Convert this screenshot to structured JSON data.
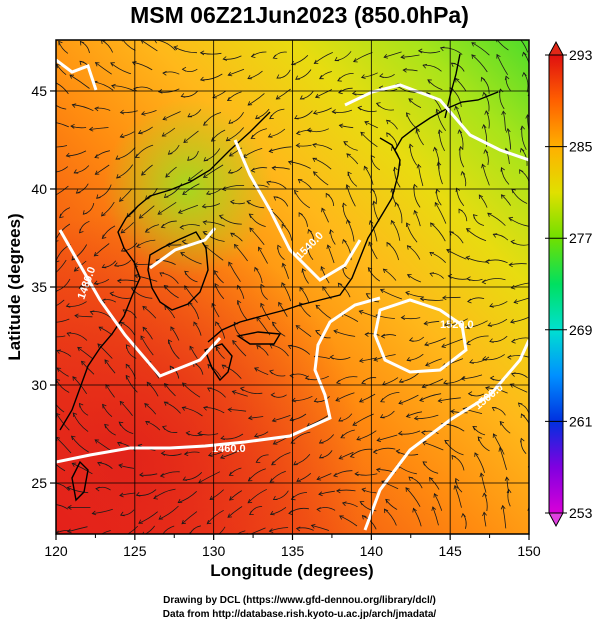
{
  "title": "MSM 06Z21Jun2023 (850.0hPa)",
  "chart_data": {
    "type": "heatmap",
    "title": "MSM 06Z21Jun2023 (850.0hPa)",
    "xlabel": "Longitude (degrees)",
    "ylabel": "Latitude  (degrees)",
    "xlim": [
      120,
      150
    ],
    "ylim": [
      22.4,
      47.6
    ],
    "x_ticks": [
      "120",
      "125",
      "130",
      "135",
      "140",
      "145",
      "150"
    ],
    "y_ticks": [
      "25",
      "30",
      "35",
      "40",
      "45"
    ],
    "colorbar": {
      "min": 253,
      "max": 293,
      "labels": [
        "293",
        "285",
        "277",
        "269",
        "261",
        "253"
      ],
      "colors": [
        "#d800d8",
        "#8000e0",
        "#0030e0",
        "#0090ff",
        "#00e0d0",
        "#00e060",
        "#70e000",
        "#e0e000",
        "#ffb000",
        "#ff6000",
        "#e01010"
      ]
    },
    "field": "temperature (K) with wind streamlines and geopotential height contours",
    "contour_labels": [
      "1460.0",
      "1480.0",
      "1500.0",
      "1520.0",
      "1540.0"
    ],
    "grid": true
  },
  "credits": {
    "line1": "Drawing by DCL (https://www.gfd-dennou.org/library/dcl/)",
    "line2": "Data from http://database.rish.kyoto-u.ac.jp/arch/jmadata/"
  }
}
